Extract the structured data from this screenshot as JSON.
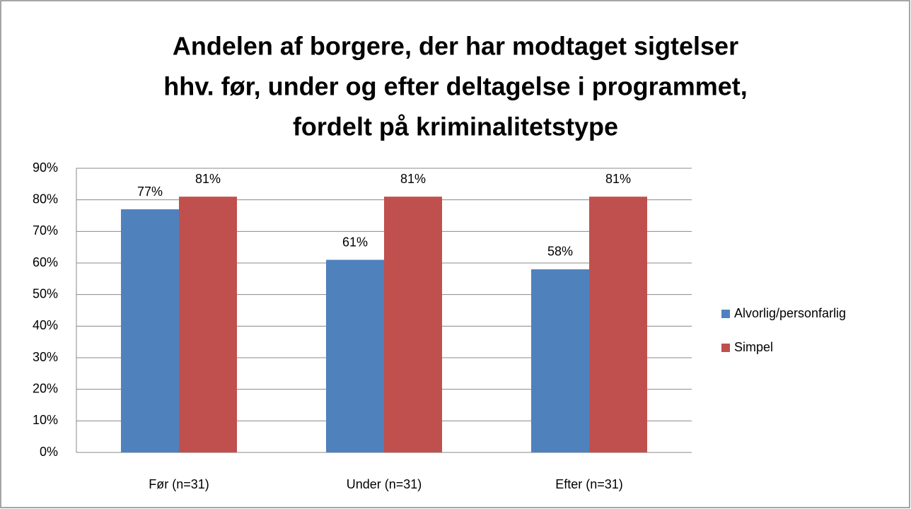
{
  "chart_data": {
    "type": "bar",
    "title": [
      "Andelen af borgere, der har modtaget sigtelser",
      "hhv. før, under og efter deltagelse i programmet,",
      "fordelt på kriminalitetstype"
    ],
    "categories": [
      "Før (n=31)",
      "Under (n=31)",
      "Efter (n=31)"
    ],
    "series": [
      {
        "name": "Alvorlig/personfarlig",
        "color": "#4f81bd",
        "values": [
          77,
          61,
          58
        ],
        "value_labels": [
          "77%",
          "61%",
          "58%"
        ]
      },
      {
        "name": "Simpel",
        "color": "#c0504d",
        "values": [
          81,
          81,
          81
        ],
        "value_labels": [
          "81%",
          "81%",
          "81%"
        ]
      }
    ],
    "ylim": [
      0,
      90
    ],
    "yticks": [
      {
        "value": 0,
        "label": "0%"
      },
      {
        "value": 10,
        "label": "10%"
      },
      {
        "value": 20,
        "label": "20%"
      },
      {
        "value": 30,
        "label": "30%"
      },
      {
        "value": 40,
        "label": "40%"
      },
      {
        "value": 50,
        "label": "50%"
      },
      {
        "value": 60,
        "label": "60%"
      },
      {
        "value": 70,
        "label": "70%"
      },
      {
        "value": 80,
        "label": "80%"
      },
      {
        "value": 90,
        "label": "90%"
      }
    ],
    "grid": true,
    "legend": "right"
  }
}
